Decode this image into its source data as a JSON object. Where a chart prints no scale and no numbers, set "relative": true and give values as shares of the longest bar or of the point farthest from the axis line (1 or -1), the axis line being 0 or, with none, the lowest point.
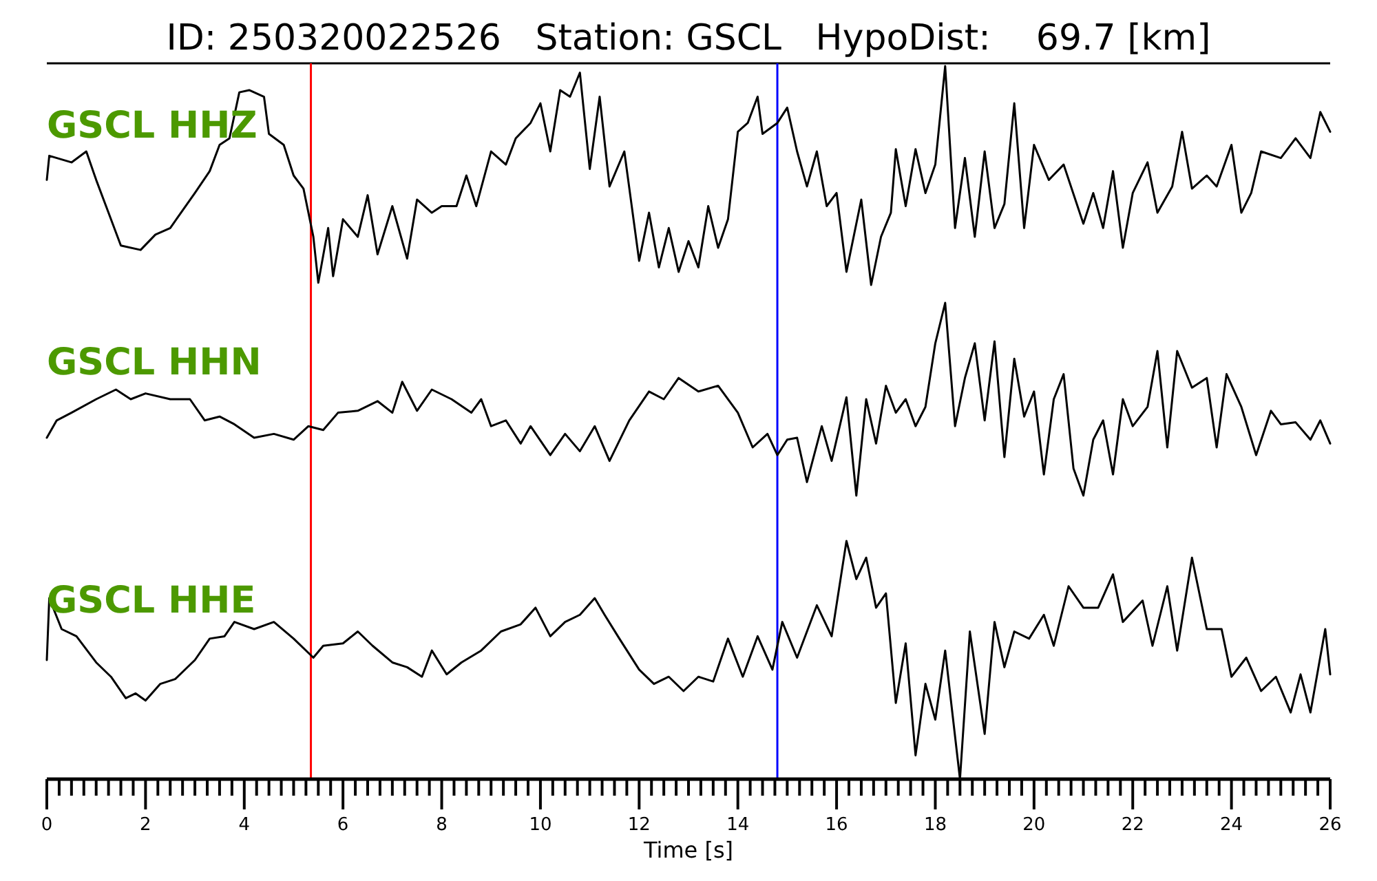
{
  "chart_data": [
    {
      "type": "line",
      "title": "ID: 250320022526   Station: GSCL   HypoDist:    69.7 [km]",
      "relative": true,
      "xlim": [
        0,
        26
      ],
      "tick_labels": false,
      "ref_lines": [
        {
          "axis": "x",
          "value": 5.35,
          "color": "#ff0000"
        },
        {
          "axis": "x",
          "value": 14.8,
          "color": "#0000ff"
        }
      ],
      "series": [
        {
          "name": "GSCL HHZ",
          "color": "#000000",
          "x": [
            0,
            0.05,
            0.5,
            0.8,
            1.0,
            1.2,
            1.5,
            1.9,
            2.2,
            2.5,
            3.0,
            3.3,
            3.5,
            3.7,
            3.9,
            4.1,
            4.4,
            4.5,
            4.8,
            5.0,
            5.2,
            5.4,
            5.5,
            5.7,
            5.8,
            6.0,
            6.3,
            6.5,
            6.7,
            7.0,
            7.3,
            7.5,
            7.8,
            8.0,
            8.3,
            8.5,
            8.7,
            9.0,
            9.3,
            9.5,
            9.8,
            10.0,
            10.2,
            10.4,
            10.6,
            10.8,
            11.0,
            11.2,
            11.4,
            11.7,
            12.0,
            12.2,
            12.4,
            12.6,
            12.8,
            13.0,
            13.2,
            13.4,
            13.6,
            13.8,
            14.0,
            14.2,
            14.4,
            14.5,
            14.8,
            15.0,
            15.2,
            15.4,
            15.6,
            15.8,
            16.0,
            16.2,
            16.5,
            16.7,
            16.9,
            17.1,
            17.2,
            17.4,
            17.6,
            17.8,
            18.0,
            18.2,
            18.4,
            18.6,
            18.8,
            19.0,
            19.2,
            19.4,
            19.6,
            19.8,
            20.0,
            20.3,
            20.6,
            21.0,
            21.2,
            21.4,
            21.6,
            21.8,
            22.0,
            22.3,
            22.5,
            22.8,
            23.0,
            23.2,
            23.5,
            23.7,
            24.0,
            24.2,
            24.4,
            24.6,
            25.0,
            25.3,
            25.6,
            25.8,
            26.0
          ],
          "values": [
            0.48,
            0.59,
            0.56,
            0.61,
            0.48,
            0.36,
            0.18,
            0.16,
            0.23,
            0.26,
            0.42,
            0.52,
            0.64,
            0.67,
            0.88,
            0.89,
            0.86,
            0.69,
            0.64,
            0.5,
            0.44,
            0.22,
            0.01,
            0.26,
            0.04,
            0.3,
            0.22,
            0.41,
            0.14,
            0.36,
            0.12,
            0.39,
            0.33,
            0.36,
            0.36,
            0.5,
            0.36,
            0.61,
            0.55,
            0.67,
            0.74,
            0.83,
            0.61,
            0.89,
            0.86,
            0.97,
            0.53,
            0.86,
            0.45,
            0.61,
            0.11,
            0.33,
            0.08,
            0.26,
            0.06,
            0.2,
            0.08,
            0.36,
            0.17,
            0.3,
            0.7,
            0.74,
            0.86,
            0.69,
            0.74,
            0.81,
            0.61,
            0.45,
            0.61,
            0.36,
            0.42,
            0.06,
            0.39,
            0,
            0.22,
            0.33,
            0.62,
            0.36,
            0.62,
            0.42,
            0.55,
            1,
            0.26,
            0.58,
            0.22,
            0.61,
            0.26,
            0.37,
            0.83,
            0.26,
            0.64,
            0.48,
            0.55,
            0.28,
            0.42,
            0.26,
            0.52,
            0.17,
            0.42,
            0.56,
            0.33,
            0.45,
            0.7,
            0.44,
            0.5,
            0.45,
            0.64,
            0.33,
            0.42,
            0.61,
            0.58,
            0.67,
            0.58,
            0.79,
            0.7
          ]
        }
      ]
    },
    {
      "type": "line",
      "relative": true,
      "xlim": [
        0,
        26
      ],
      "tick_labels": false,
      "ref_lines": [
        {
          "axis": "x",
          "value": 5.35,
          "color": "#ff0000"
        },
        {
          "axis": "x",
          "value": 14.8,
          "color": "#0000ff"
        }
      ],
      "series": [
        {
          "name": "GSCL HHN",
          "color": "#000000",
          "x": [
            0,
            0.2,
            0.5,
            1.0,
            1.4,
            1.7,
            2.0,
            2.5,
            2.9,
            3.2,
            3.5,
            3.8,
            4.2,
            4.6,
            5.0,
            5.3,
            5.6,
            5.9,
            6.3,
            6.7,
            7.0,
            7.2,
            7.5,
            7.8,
            8.2,
            8.6,
            8.8,
            9.0,
            9.3,
            9.6,
            9.8,
            10.2,
            10.5,
            10.8,
            11.1,
            11.4,
            11.8,
            12.2,
            12.5,
            12.8,
            13.2,
            13.6,
            14.0,
            14.3,
            14.6,
            14.8,
            15.0,
            15.2,
            15.4,
            15.7,
            15.9,
            16.2,
            16.4,
            16.6,
            16.8,
            17.0,
            17.2,
            17.4,
            17.6,
            17.8,
            18.0,
            18.2,
            18.4,
            18.6,
            18.8,
            19.0,
            19.2,
            19.4,
            19.6,
            19.8,
            20.0,
            20.2,
            20.4,
            20.6,
            20.8,
            21.0,
            21.2,
            21.4,
            21.6,
            21.8,
            22.0,
            22.3,
            22.5,
            22.7,
            22.9,
            23.2,
            23.5,
            23.7,
            23.9,
            24.2,
            24.5,
            24.8,
            25.0,
            25.3,
            25.6,
            25.8,
            26.0
          ],
          "values": [
            0.3,
            0.39,
            0.43,
            0.5,
            0.55,
            0.5,
            0.53,
            0.5,
            0.5,
            0.39,
            0.41,
            0.37,
            0.3,
            0.32,
            0.29,
            0.36,
            0.34,
            0.43,
            0.44,
            0.49,
            0.43,
            0.59,
            0.44,
            0.55,
            0.5,
            0.43,
            0.5,
            0.36,
            0.39,
            0.27,
            0.36,
            0.21,
            0.32,
            0.23,
            0.36,
            0.18,
            0.39,
            0.54,
            0.5,
            0.61,
            0.54,
            0.57,
            0.43,
            0.25,
            0.32,
            0.21,
            0.29,
            0.3,
            0.07,
            0.36,
            0.18,
            0.51,
            0,
            0.5,
            0.27,
            0.57,
            0.43,
            0.5,
            0.36,
            0.46,
            0.79,
            1,
            0.36,
            0.61,
            0.79,
            0.39,
            0.8,
            0.2,
            0.71,
            0.41,
            0.54,
            0.11,
            0.5,
            0.63,
            0.14,
            0,
            0.29,
            0.39,
            0.11,
            0.5,
            0.36,
            0.46,
            0.75,
            0.25,
            0.75,
            0.56,
            0.61,
            0.25,
            0.63,
            0.46,
            0.21,
            0.44,
            0.37,
            0.38,
            0.29,
            0.39,
            0.27
          ]
        }
      ]
    },
    {
      "type": "line",
      "relative": true,
      "xlim": [
        0,
        26
      ],
      "tick_labels": "x",
      "xlabel": "Time [s]",
      "xticks": [
        0,
        {
          "value": 0.25,
          "label": null
        },
        {
          "value": 0.5,
          "label": null
        },
        {
          "value": 0.75,
          "label": null
        },
        {
          "value": 1,
          "label": null
        },
        {
          "value": 1.25,
          "label": null
        },
        {
          "value": 1.5,
          "label": null
        },
        {
          "value": 1.75,
          "label": null
        },
        2,
        {
          "value": 2.25,
          "label": null
        },
        {
          "value": 2.5,
          "label": null
        },
        {
          "value": 2.75,
          "label": null
        },
        {
          "value": 3,
          "label": null
        },
        {
          "value": 3.25,
          "label": null
        },
        {
          "value": 3.5,
          "label": null
        },
        {
          "value": 3.75,
          "label": null
        },
        4,
        {
          "value": 4.25,
          "label": null
        },
        {
          "value": 4.5,
          "label": null
        },
        {
          "value": 4.75,
          "label": null
        },
        {
          "value": 5,
          "label": null
        },
        {
          "value": 5.25,
          "label": null
        },
        {
          "value": 5.5,
          "label": null
        },
        {
          "value": 5.75,
          "label": null
        },
        6,
        {
          "value": 6.25,
          "label": null
        },
        {
          "value": 6.5,
          "label": null
        },
        {
          "value": 6.75,
          "label": null
        },
        {
          "value": 7,
          "label": null
        },
        {
          "value": 7.25,
          "label": null
        },
        {
          "value": 7.5,
          "label": null
        },
        {
          "value": 7.75,
          "label": null
        },
        8,
        {
          "value": 8.25,
          "label": null
        },
        {
          "value": 8.5,
          "label": null
        },
        {
          "value": 8.75,
          "label": null
        },
        {
          "value": 9,
          "label": null
        },
        {
          "value": 9.25,
          "label": null
        },
        {
          "value": 9.5,
          "label": null
        },
        {
          "value": 9.75,
          "label": null
        },
        10,
        {
          "value": 10.25,
          "label": null
        },
        {
          "value": 10.5,
          "label": null
        },
        {
          "value": 10.75,
          "label": null
        },
        {
          "value": 11,
          "label": null
        },
        {
          "value": 11.25,
          "label": null
        },
        {
          "value": 11.5,
          "label": null
        },
        {
          "value": 11.75,
          "label": null
        },
        12,
        {
          "value": 12.25,
          "label": null
        },
        {
          "value": 12.5,
          "label": null
        },
        {
          "value": 12.75,
          "label": null
        },
        {
          "value": 13,
          "label": null
        },
        {
          "value": 13.25,
          "label": null
        },
        {
          "value": 13.5,
          "label": null
        },
        {
          "value": 13.75,
          "label": null
        },
        14,
        {
          "value": 14.25,
          "label": null
        },
        {
          "value": 14.5,
          "label": null
        },
        {
          "value": 14.75,
          "label": null
        },
        {
          "value": 15,
          "label": null
        },
        {
          "value": 15.25,
          "label": null
        },
        {
          "value": 15.5,
          "label": null
        },
        {
          "value": 15.75,
          "label": null
        },
        16,
        {
          "value": 16.25,
          "label": null
        },
        {
          "value": 16.5,
          "label": null
        },
        {
          "value": 16.75,
          "label": null
        },
        {
          "value": 17,
          "label": null
        },
        {
          "value": 17.25,
          "label": null
        },
        {
          "value": 17.5,
          "label": null
        },
        {
          "value": 17.75,
          "label": null
        },
        18,
        {
          "value": 18.25,
          "label": null
        },
        {
          "value": 18.5,
          "label": null
        },
        {
          "value": 18.75,
          "label": null
        },
        {
          "value": 19,
          "label": null
        },
        {
          "value": 19.25,
          "label": null
        },
        {
          "value": 19.5,
          "label": null
        },
        {
          "value": 19.75,
          "label": null
        },
        20,
        {
          "value": 20.25,
          "label": null
        },
        {
          "value": 20.5,
          "label": null
        },
        {
          "value": 20.75,
          "label": null
        },
        {
          "value": 21,
          "label": null
        },
        {
          "value": 21.25,
          "label": null
        },
        {
          "value": 21.5,
          "label": null
        },
        {
          "value": 21.75,
          "label": null
        },
        22,
        {
          "value": 22.25,
          "label": null
        },
        {
          "value": 22.5,
          "label": null
        },
        {
          "value": 22.75,
          "label": null
        },
        {
          "value": 23,
          "label": null
        },
        {
          "value": 23.25,
          "label": null
        },
        {
          "value": 23.5,
          "label": null
        },
        {
          "value": 23.75,
          "label": null
        },
        24,
        {
          "value": 24.25,
          "label": null
        },
        {
          "value": 24.5,
          "label": null
        },
        {
          "value": 24.75,
          "label": null
        },
        {
          "value": 25,
          "label": null
        },
        {
          "value": 25.25,
          "label": null
        },
        {
          "value": 25.5,
          "label": null
        },
        {
          "value": 25.75,
          "label": null
        },
        26
      ],
      "ref_lines": [
        {
          "axis": "x",
          "value": 5.35,
          "color": "#ff0000"
        },
        {
          "axis": "x",
          "value": 14.8,
          "color": "#0000ff"
        }
      ],
      "series": [
        {
          "name": "GSCL HHE",
          "color": "#000000",
          "x": [
            0,
            0.05,
            0.3,
            0.6,
            1.0,
            1.3,
            1.6,
            1.8,
            2.0,
            2.3,
            2.6,
            3.0,
            3.3,
            3.6,
            3.8,
            4.2,
            4.6,
            5.0,
            5.4,
            5.6,
            6.0,
            6.3,
            6.6,
            7.0,
            7.3,
            7.6,
            7.8,
            8.1,
            8.4,
            8.8,
            9.2,
            9.6,
            9.9,
            10.2,
            10.5,
            10.8,
            11.1,
            11.3,
            11.6,
            12.0,
            12.3,
            12.6,
            12.9,
            13.2,
            13.5,
            13.8,
            14.1,
            14.4,
            14.7,
            14.9,
            15.2,
            15.6,
            15.9,
            16.2,
            16.4,
            16.6,
            16.8,
            17.0,
            17.2,
            17.4,
            17.6,
            17.8,
            18.0,
            18.2,
            18.5,
            18.7,
            19.0,
            19.2,
            19.4,
            19.6,
            19.9,
            20.2,
            20.4,
            20.7,
            21.0,
            21.3,
            21.6,
            21.8,
            22.2,
            22.4,
            22.7,
            22.9,
            23.2,
            23.5,
            23.8,
            24.0,
            24.3,
            24.6,
            24.9,
            25.2,
            25.4,
            25.6,
            25.9,
            26.0
          ],
          "values": [
            0.5,
            0.76,
            0.63,
            0.6,
            0.49,
            0.43,
            0.34,
            0.36,
            0.33,
            0.4,
            0.42,
            0.5,
            0.59,
            0.6,
            0.66,
            0.63,
            0.66,
            0.59,
            0.51,
            0.56,
            0.57,
            0.62,
            0.56,
            0.49,
            0.47,
            0.43,
            0.54,
            0.44,
            0.49,
            0.54,
            0.62,
            0.65,
            0.72,
            0.6,
            0.66,
            0.69,
            0.76,
            0.69,
            0.59,
            0.46,
            0.4,
            0.43,
            0.37,
            0.43,
            0.41,
            0.59,
            0.43,
            0.6,
            0.46,
            0.66,
            0.51,
            0.73,
            0.6,
            1,
            0.84,
            0.93,
            0.72,
            0.78,
            0.32,
            0.57,
            0.1,
            0.4,
            0.25,
            0.54,
            0,
            0.62,
            0.19,
            0.66,
            0.47,
            0.62,
            0.59,
            0.69,
            0.56,
            0.81,
            0.72,
            0.72,
            0.86,
            0.66,
            0.75,
            0.56,
            0.81,
            0.54,
            0.93,
            0.63,
            0.63,
            0.43,
            0.51,
            0.37,
            0.43,
            0.28,
            0.44,
            0.28,
            0.63,
            0.44
          ]
        }
      ]
    }
  ]
}
